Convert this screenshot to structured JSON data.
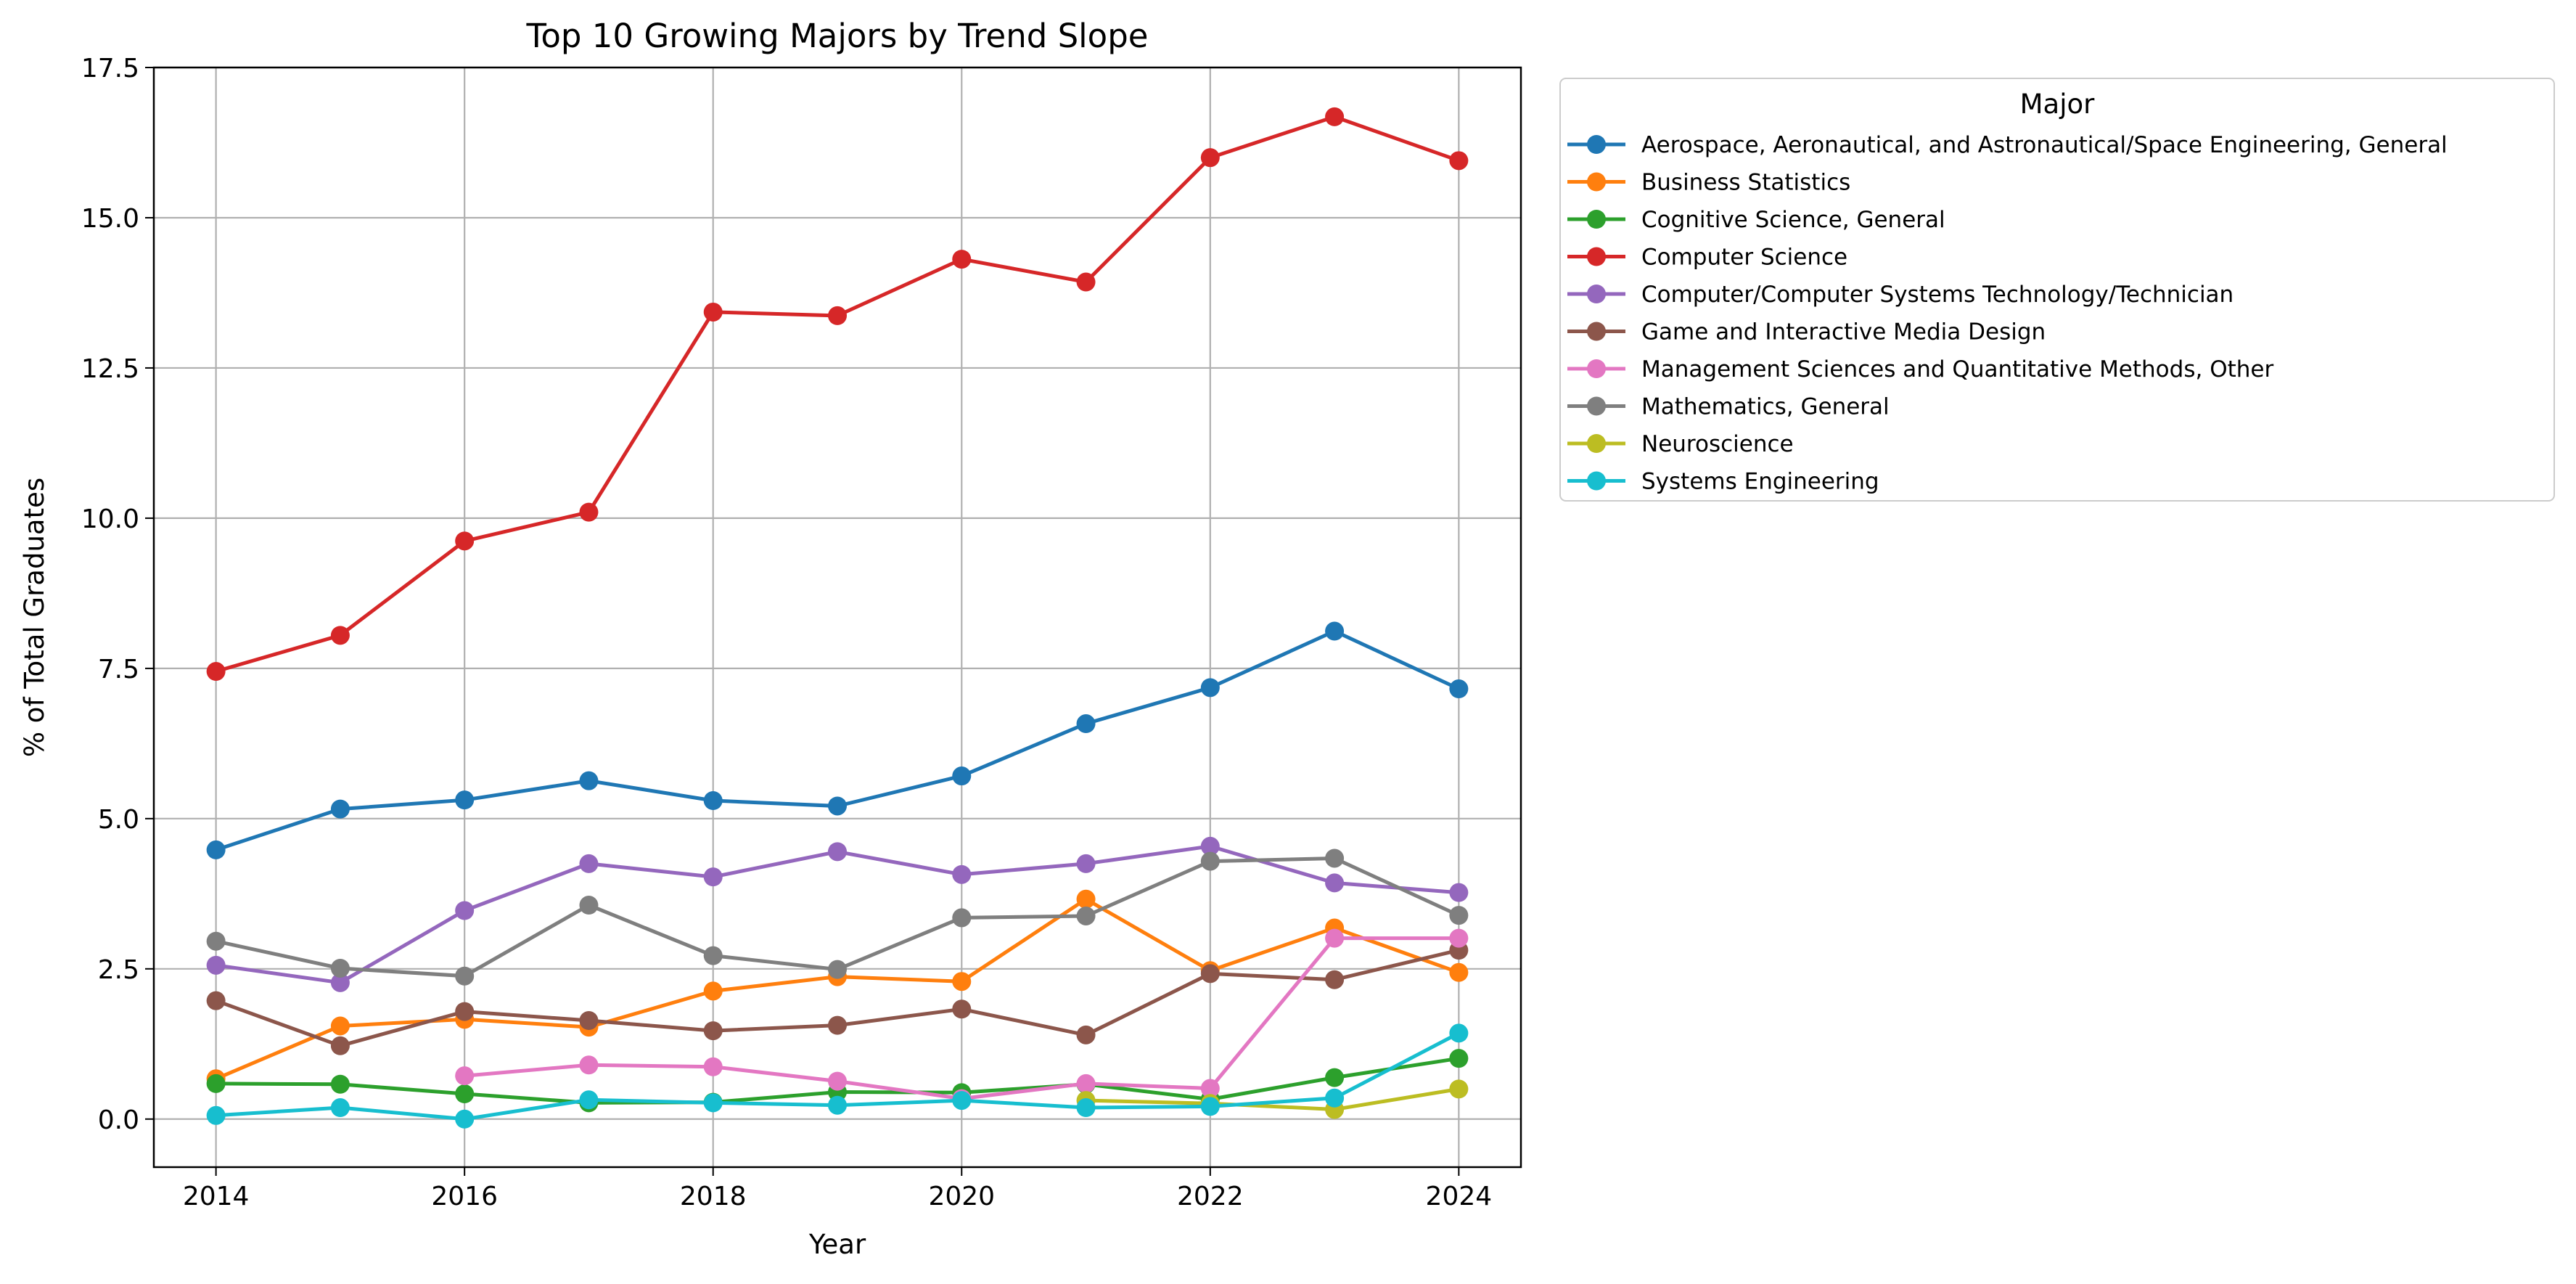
{
  "chart_data": {
    "type": "line",
    "title": "Top 10 Growing Majors by Trend Slope",
    "xlabel": "Year",
    "ylabel": "% of Total Graduates",
    "x": [
      2014,
      2015,
      2016,
      2017,
      2018,
      2019,
      2020,
      2021,
      2022,
      2023,
      2024
    ],
    "xticks": [
      2014,
      2016,
      2018,
      2020,
      2022,
      2024
    ],
    "xlim": [
      2013.5,
      2024.5
    ],
    "ylim": [
      -0.8,
      17.5
    ],
    "yticks": [
      0.0,
      2.5,
      5.0,
      7.5,
      10.0,
      12.5,
      15.0,
      17.5
    ],
    "yticklabels": [
      "0.0",
      "2.5",
      "5.0",
      "7.5",
      "10.0",
      "12.5",
      "15.0",
      "17.5"
    ],
    "grid": true,
    "legend": {
      "title": "Major",
      "placement": "outside-right-top"
    },
    "series": [
      {
        "name": "Aerospace, Aeronautical, and Astronautical/Space Engineering, General",
        "color": "#1f77b4",
        "values": [
          4.48,
          5.16,
          5.31,
          5.63,
          5.3,
          5.21,
          5.71,
          6.58,
          7.18,
          8.12,
          7.16
        ]
      },
      {
        "name": "Business Statistics",
        "color": "#ff7f0e",
        "values": [
          0.67,
          1.55,
          1.66,
          1.53,
          2.13,
          2.37,
          2.29,
          3.66,
          2.47,
          3.18,
          2.44
        ]
      },
      {
        "name": "Cognitive Science, General",
        "color": "#2ca02c",
        "values": [
          0.59,
          0.58,
          0.42,
          0.27,
          0.28,
          0.45,
          0.44,
          0.58,
          0.33,
          0.69,
          1.01
        ]
      },
      {
        "name": "Computer Science",
        "color": "#d62728",
        "values": [
          7.45,
          8.05,
          9.62,
          10.1,
          13.43,
          13.37,
          14.31,
          13.93,
          16.0,
          16.68,
          15.95
        ]
      },
      {
        "name": "Computer/Computer Systems Technology/Technician",
        "color": "#9467bd",
        "values": [
          2.56,
          2.27,
          3.47,
          4.25,
          4.03,
          4.45,
          4.07,
          4.25,
          4.54,
          3.93,
          3.77
        ]
      },
      {
        "name": "Game and Interactive Media Design",
        "color": "#8c564b",
        "values": [
          1.97,
          1.22,
          1.79,
          1.64,
          1.47,
          1.56,
          1.83,
          1.4,
          2.42,
          2.32,
          2.81
        ]
      },
      {
        "name": "Management Sciences and Quantitative Methods, Other",
        "color": "#e377c2",
        "values": [
          null,
          null,
          0.72,
          0.9,
          0.87,
          0.63,
          0.34,
          0.59,
          0.51,
          3.01,
          3.01
        ]
      },
      {
        "name": "Mathematics, General",
        "color": "#7f7f7f",
        "values": [
          2.96,
          2.51,
          2.38,
          3.56,
          2.72,
          2.49,
          3.35,
          3.38,
          4.29,
          4.34,
          3.39
        ]
      },
      {
        "name": "Neuroscience",
        "color": "#bcbd22",
        "values": [
          null,
          null,
          null,
          null,
          null,
          null,
          null,
          0.31,
          0.26,
          0.16,
          0.5
        ]
      },
      {
        "name": "Systems Engineering",
        "color": "#17becf",
        "values": [
          0.06,
          0.19,
          0.0,
          0.32,
          0.27,
          0.23,
          0.31,
          0.19,
          0.21,
          0.35,
          1.43
        ]
      }
    ]
  }
}
